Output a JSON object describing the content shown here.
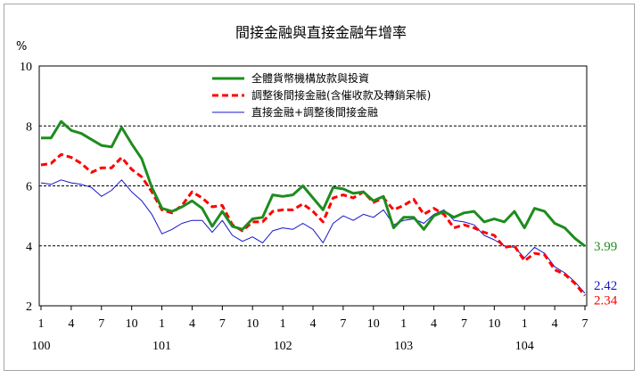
{
  "chart_data": {
    "type": "line",
    "title": "間接金融與直接金融年增率",
    "ylabel": "%",
    "ylim": [
      2,
      10
    ],
    "yticks": [
      2,
      4,
      6,
      8,
      10
    ],
    "grid": "horizontal-dashed",
    "legend_position": "top-right",
    "x_tick_labels": [
      {
        "i": 0,
        "label": "1"
      },
      {
        "i": 3,
        "label": "4"
      },
      {
        "i": 6,
        "label": "7"
      },
      {
        "i": 9,
        "label": "10"
      },
      {
        "i": 12,
        "label": "1"
      },
      {
        "i": 15,
        "label": "4"
      },
      {
        "i": 18,
        "label": "7"
      },
      {
        "i": 21,
        "label": "10"
      },
      {
        "i": 24,
        "label": "1"
      },
      {
        "i": 27,
        "label": "4"
      },
      {
        "i": 30,
        "label": "7"
      },
      {
        "i": 33,
        "label": "10"
      },
      {
        "i": 36,
        "label": "1"
      },
      {
        "i": 39,
        "label": "4"
      },
      {
        "i": 42,
        "label": "7"
      },
      {
        "i": 45,
        "label": "10"
      },
      {
        "i": 48,
        "label": "1"
      },
      {
        "i": 51,
        "label": "4"
      },
      {
        "i": 54,
        "label": "7"
      }
    ],
    "year_labels": [
      {
        "i": 0,
        "label": "100"
      },
      {
        "i": 12,
        "label": "101"
      },
      {
        "i": 24,
        "label": "102"
      },
      {
        "i": 36,
        "label": "103"
      },
      {
        "i": 48,
        "label": "104"
      }
    ],
    "series": [
      {
        "name": "全體貨幣機構放款與投資",
        "color": "#1e8c1e",
        "dash": "solid",
        "width": 3,
        "end_label": "3.99",
        "values": [
          7.6,
          7.6,
          8.15,
          7.85,
          7.75,
          7.55,
          7.35,
          7.3,
          7.95,
          7.4,
          6.9,
          5.95,
          5.25,
          5.15,
          5.3,
          5.5,
          5.25,
          4.65,
          5.15,
          4.65,
          4.55,
          4.9,
          4.95,
          5.7,
          5.65,
          5.7,
          6.0,
          5.6,
          5.2,
          5.95,
          5.9,
          5.75,
          5.8,
          5.5,
          5.65,
          4.6,
          4.95,
          4.95,
          4.55,
          5.0,
          5.15,
          4.95,
          5.1,
          5.15,
          4.8,
          4.9,
          4.8,
          5.15,
          4.6,
          5.25,
          5.15,
          4.75,
          4.6,
          4.25,
          3.99
        ]
      },
      {
        "name": "調整後間接金融(含催收款及轉銷呆帳)",
        "color": "#ff0000",
        "dash": "dashed",
        "width": 3,
        "end_label": "2.34",
        "values": [
          6.7,
          6.75,
          7.05,
          6.95,
          6.75,
          6.45,
          6.6,
          6.6,
          6.95,
          6.55,
          6.3,
          5.8,
          5.2,
          5.1,
          5.35,
          5.8,
          5.6,
          5.3,
          5.35,
          4.7,
          4.5,
          4.8,
          4.8,
          5.15,
          5.2,
          5.2,
          5.4,
          5.15,
          4.8,
          5.6,
          5.7,
          5.6,
          5.8,
          5.45,
          5.6,
          5.2,
          5.35,
          5.55,
          5.05,
          5.25,
          5.05,
          4.6,
          4.7,
          4.6,
          4.45,
          4.35,
          3.95,
          4.0,
          3.5,
          3.75,
          3.7,
          3.2,
          3.05,
          2.75,
          2.34
        ]
      },
      {
        "name": "直接金融+調整後間接金融",
        "color": "#1515cc",
        "dash": "solid",
        "width": 1,
        "end_label": "2.42",
        "values": [
          6.1,
          6.05,
          6.2,
          6.1,
          6.05,
          5.95,
          5.65,
          5.85,
          6.2,
          5.8,
          5.5,
          5.05,
          4.4,
          4.55,
          4.75,
          4.85,
          4.85,
          4.45,
          4.85,
          4.35,
          4.15,
          4.3,
          4.1,
          4.5,
          4.6,
          4.55,
          4.75,
          4.55,
          4.1,
          4.75,
          5.0,
          4.85,
          5.05,
          4.95,
          5.2,
          4.7,
          4.85,
          4.9,
          4.75,
          5.05,
          5.2,
          4.85,
          4.8,
          4.7,
          4.35,
          4.2,
          4.0,
          3.95,
          3.6,
          3.95,
          3.75,
          3.3,
          3.1,
          2.8,
          2.42
        ]
      }
    ]
  }
}
